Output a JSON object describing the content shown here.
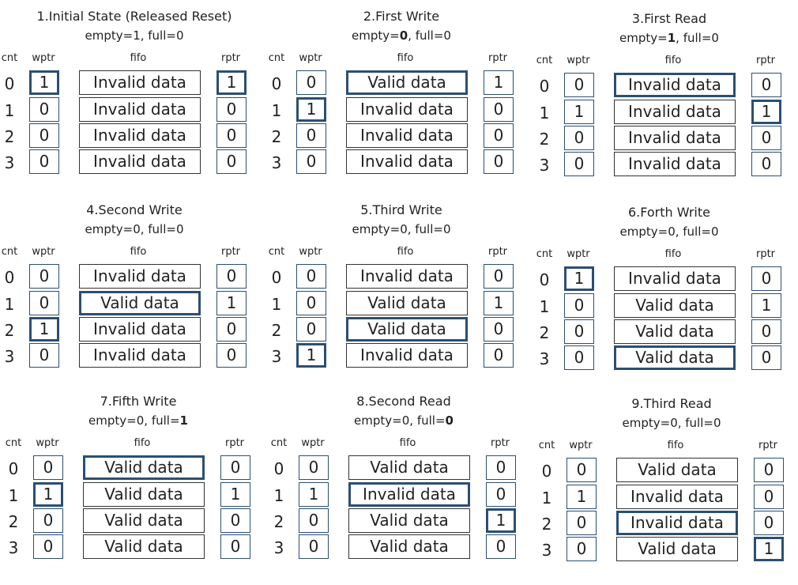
{
  "headers": {
    "cnt": "cnt",
    "wptr": "wptr",
    "fifo": "fifo",
    "rptr": "rptr"
  },
  "cnt_labels": [
    "0",
    "1",
    "2",
    "3"
  ],
  "panels": [
    {
      "title": "1.Initial State (Released Reset)",
      "empty_pre": "empty=",
      "empty": "1",
      "full_pre": ", full=",
      "full": "0",
      "bold": "",
      "wptr": [
        "1",
        "0",
        "0",
        "0"
      ],
      "rptr": [
        "1",
        "0",
        "0",
        "0"
      ],
      "fifo": [
        "Invalid data",
        "Invalid data",
        "Invalid data",
        "Invalid data"
      ],
      "w_hl": 0,
      "f_hl": -1,
      "r_hl": 0
    },
    {
      "title": "2.First Write",
      "empty_pre": "empty=",
      "empty": "0",
      "full_pre": ", full=",
      "full": "0",
      "bold": "empty",
      "wptr": [
        "0",
        "1",
        "0",
        "0"
      ],
      "rptr": [
        "1",
        "0",
        "0",
        "0"
      ],
      "fifo": [
        "Valid data",
        "Invalid data",
        "Invalid data",
        "Invalid data"
      ],
      "w_hl": 1,
      "f_hl": 0,
      "r_hl": -1
    },
    {
      "title": "3.First Read",
      "empty_pre": "empty=",
      "empty": "1",
      "full_pre": ", full=",
      "full": "0",
      "bold": "empty",
      "wptr": [
        "0",
        "1",
        "0",
        "0"
      ],
      "rptr": [
        "0",
        "1",
        "0",
        "0"
      ],
      "fifo": [
        "Invalid data",
        "Invalid data",
        "Invalid data",
        "Invalid data"
      ],
      "w_hl": -1,
      "f_hl": 0,
      "r_hl": 1
    },
    {
      "title": "4.Second Write",
      "empty_pre": "empty=",
      "empty": "0",
      "full_pre": ", full=",
      "full": "0",
      "bold": "",
      "wptr": [
        "0",
        "0",
        "1",
        "0"
      ],
      "rptr": [
        "0",
        "1",
        "0",
        "0"
      ],
      "fifo": [
        "Invalid data",
        "Valid data",
        "Invalid data",
        "Invalid data"
      ],
      "w_hl": 2,
      "f_hl": 1,
      "r_hl": -1
    },
    {
      "title": "5.Third Write",
      "empty_pre": "empty=",
      "empty": "0",
      "full_pre": ", full=",
      "full": "0",
      "bold": "",
      "wptr": [
        "0",
        "0",
        "0",
        "1"
      ],
      "rptr": [
        "0",
        "1",
        "0",
        "0"
      ],
      "fifo": [
        "Invalid data",
        "Valid data",
        "Valid data",
        "Invalid data"
      ],
      "w_hl": 3,
      "f_hl": 2,
      "r_hl": -1
    },
    {
      "title": "6.Forth Write",
      "empty_pre": "empty=",
      "empty": "0",
      "full_pre": ", full=",
      "full": "0",
      "bold": "",
      "wptr": [
        "1",
        "0",
        "0",
        "0"
      ],
      "rptr": [
        "0",
        "1",
        "0",
        "0"
      ],
      "fifo": [
        "Invalid data",
        "Valid data",
        "Valid data",
        "Valid data"
      ],
      "w_hl": 0,
      "f_hl": 3,
      "r_hl": -1
    },
    {
      "title": "7.Fifth Write",
      "empty_pre": "empty=",
      "empty": "0",
      "full_pre": ", full=",
      "full": "1",
      "bold": "full",
      "wptr": [
        "0",
        "1",
        "0",
        "0"
      ],
      "rptr": [
        "0",
        "1",
        "0",
        "0"
      ],
      "fifo": [
        "Valid data",
        "Valid data",
        "Valid data",
        "Valid data"
      ],
      "w_hl": 1,
      "f_hl": 0,
      "r_hl": -1
    },
    {
      "title": "8.Second Read",
      "empty_pre": "empty=",
      "empty": "0",
      "full_pre": ", full=",
      "full": "0",
      "bold": "full",
      "wptr": [
        "0",
        "1",
        "0",
        "0"
      ],
      "rptr": [
        "0",
        "0",
        "1",
        "0"
      ],
      "fifo": [
        "Valid data",
        "Invalid data",
        "Valid data",
        "Valid data"
      ],
      "w_hl": -1,
      "f_hl": 1,
      "r_hl": 2
    },
    {
      "title": "9.Third Read",
      "empty_pre": "empty=",
      "empty": "0",
      "full_pre": ", full=",
      "full": "0",
      "bold": "",
      "wptr": [
        "0",
        "1",
        "0",
        "0"
      ],
      "rptr": [
        "0",
        "0",
        "0",
        "1"
      ],
      "fifo": [
        "Valid data",
        "Invalid data",
        "Invalid data",
        "Valid data"
      ],
      "w_hl": -1,
      "f_hl": 2,
      "r_hl": 3
    }
  ]
}
